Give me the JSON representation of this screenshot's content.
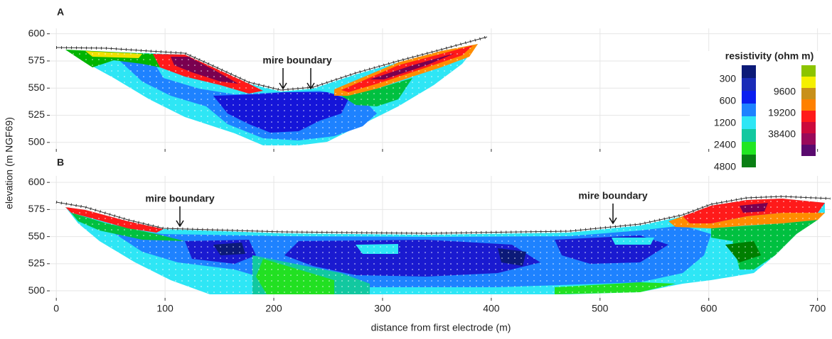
{
  "chart_data": [
    {
      "type": "contour",
      "panel_label": "A",
      "annotations": [
        "mire boundary"
      ],
      "xlim": [
        -6,
        712
      ],
      "ylim": [
        494,
        605
      ],
      "yticks": [
        500,
        525,
        550,
        575,
        600
      ],
      "grid": true
    },
    {
      "type": "contour",
      "panel_label": "B",
      "annotations": [
        "mire boundary",
        "mire boundary"
      ],
      "xlim": [
        -6,
        712
      ],
      "ylim": [
        493.5,
        606
      ],
      "xticks": [
        0,
        100,
        200,
        300,
        400,
        500,
        600,
        700
      ],
      "yticks": [
        500,
        525,
        550,
        575,
        600
      ],
      "grid": true
    }
  ],
  "x_axis_label": "distance from first electrode (m)",
  "y_axis_label": "elevation (m NGF69)",
  "colorbar": {
    "title": "resistivity (ohm m)",
    "scale": "log",
    "ticks": [
      300,
      600,
      1200,
      2400,
      4800,
      9600,
      19200,
      38400
    ],
    "colors": [
      "#0c1a78",
      "#1a2cb8",
      "#0a1ef0",
      "#1e82ff",
      "#2ee6f5",
      "#12c8a0",
      "#22e622",
      "#0a7f14",
      "#8cc400",
      "#f5f000",
      "#c8901a",
      "#ff8000",
      "#ff1a1a",
      "#cc0a3c",
      "#9a0a5a",
      "#5a0a6e"
    ]
  }
}
